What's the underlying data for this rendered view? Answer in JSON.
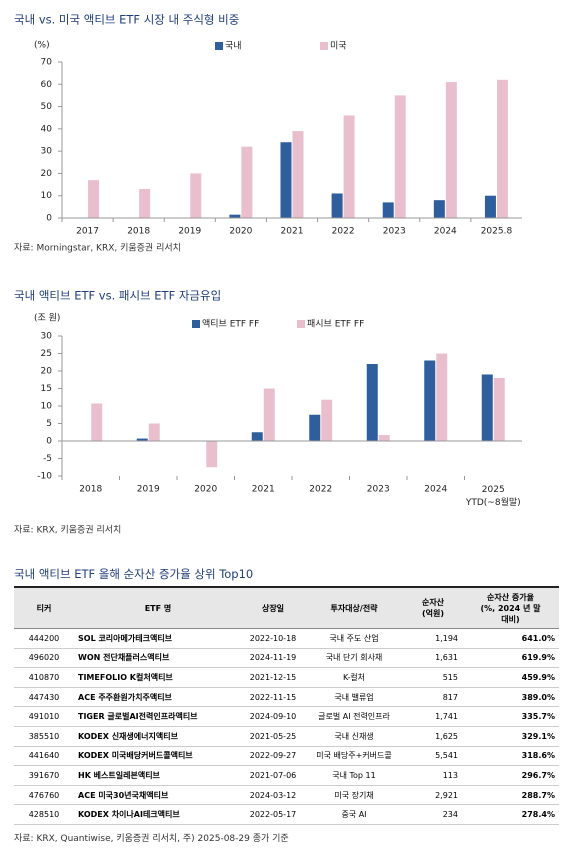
{
  "chart_data": [
    {
      "type": "bar",
      "title": "국내 vs. 미국 액티브 ETF 시장 내 주식형 비중",
      "y_unit": "(%)",
      "categories": [
        "2017",
        "2018",
        "2019",
        "2020",
        "2021",
        "2022",
        "2023",
        "2024",
        "2025.8"
      ],
      "series": [
        {
          "name": "국내",
          "color": "#2e5e9c",
          "values": [
            0,
            0,
            0,
            1.5,
            34,
            11,
            7,
            8,
            10
          ]
        },
        {
          "name": "미국",
          "color": "#e9bfcd",
          "values": [
            17,
            13,
            20,
            32,
            39,
            46,
            55,
            61,
            62
          ]
        }
      ],
      "ylim": [
        0,
        70
      ],
      "yticks": [
        0,
        10,
        20,
        30,
        40,
        50,
        60,
        70
      ],
      "source": "자료: Morningstar, KRX, 키움증권 리서치"
    },
    {
      "type": "bar",
      "title": "국내 액티브 ETF vs. 패시브 ETF 자금유입",
      "y_unit": "(조 원)",
      "categories": [
        "2018",
        "2019",
        "2020",
        "2021",
        "2022",
        "2023",
        "2024",
        "2025\nYTD(~8월말)"
      ],
      "series": [
        {
          "name": "액티브 ETF FF",
          "color": "#2e5e9c",
          "values": [
            0,
            0.7,
            0,
            2.5,
            7.5,
            22,
            23,
            19
          ]
        },
        {
          "name": "패시브 ETF FF",
          "color": "#e9bfcd",
          "values": [
            10.7,
            5,
            -7.5,
            15,
            11.8,
            1.7,
            25,
            18
          ]
        }
      ],
      "ylim": [
        -10,
        30
      ],
      "yticks": [
        -10,
        -5,
        0,
        5,
        10,
        15,
        20,
        25,
        30
      ],
      "source": "자료: KRX, 키움증권 리서치"
    }
  ],
  "table": {
    "title": "국내 액티브 ETF 올해 순자산 증가율 상위 Top10",
    "headers": [
      "티커",
      "ETF 명",
      "상장일",
      "투자대상/전략",
      "순자산\n(억원)",
      "순자산 증가율\n(%, 2024 년 말\n대비)"
    ],
    "rows": [
      [
        "444200",
        "SOL 코리아메가테크액티브",
        "2022-10-18",
        "국내 주도 산업",
        "1,194",
        "641.0%"
      ],
      [
        "496020",
        "WON 전단채플러스액티브",
        "2024-11-19",
        "국내 단기 회사채",
        "1,631",
        "619.9%"
      ],
      [
        "410870",
        "TIMEFOLIO K컬처액티브",
        "2021-12-15",
        "K-컬처",
        "515",
        "459.9%"
      ],
      [
        "447430",
        "ACE 주주환원가치주액티브",
        "2022-11-15",
        "국내 밸류업",
        "817",
        "389.0%"
      ],
      [
        "491010",
        "TIGER 글로벌AI전력인프라액티브",
        "2024-09-10",
        "글로벌 AI 전력인프라",
        "1,741",
        "335.7%"
      ],
      [
        "385510",
        "KODEX 신재생에너지액티브",
        "2021-05-25",
        "국내 신재생",
        "1,625",
        "329.1%"
      ],
      [
        "441640",
        "KODEX 미국배당커버드콜액티브",
        "2022-09-27",
        "미국 배당주+커버드콜",
        "5,541",
        "318.6%"
      ],
      [
        "391670",
        "HK 베스트일레븐액티브",
        "2021-07-06",
        "국내 Top 11",
        "113",
        "296.7%"
      ],
      [
        "476760",
        "ACE 미국30년국채액티브",
        "2024-03-12",
        "미국 장기채",
        "2,921",
        "288.7%"
      ],
      [
        "428510",
        "KODEX 차이나AI테크액티브",
        "2022-05-17",
        "중국 AI",
        "234",
        "278.4%"
      ]
    ],
    "source": "자료: KRX, Quantiwise, 키움증권 리서치, 주) 2025-08-29 종가 기준"
  }
}
